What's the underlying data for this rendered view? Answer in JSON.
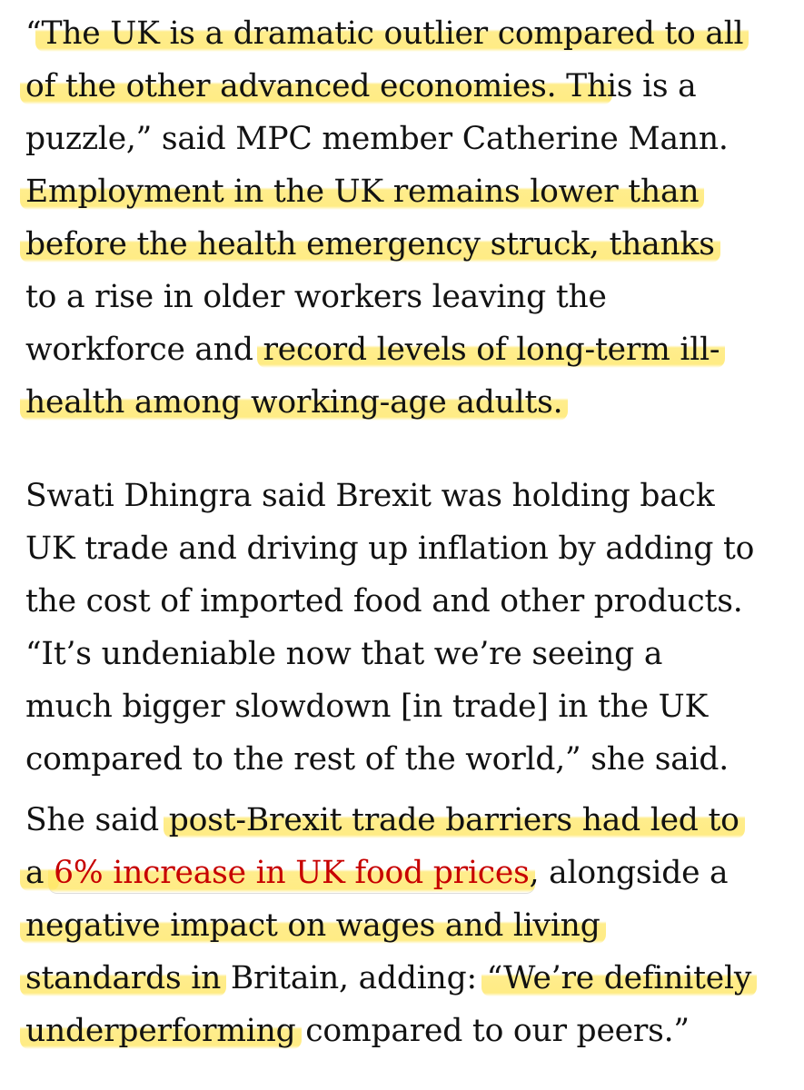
{
  "paragraphs": [
    {
      "lines": [
        [
          {
            "t": "“",
            "hl": false
          },
          {
            "t": "The UK is a dramatic outlier compared to all",
            "hl": true
          }
        ],
        [
          {
            "t": "of the other advanced economies. Th",
            "hl": true
          },
          {
            "t": "is is a",
            "hl": false
          }
        ],
        [
          {
            "t": "puzzle,” said MPC member Catherine Mann.",
            "hl": false
          }
        ],
        [
          {
            "t": "Employment in the UK remains lower than",
            "hl": true
          }
        ],
        [
          {
            "t": "before the health emergency struck, thanks",
            "hl": true
          }
        ],
        [
          {
            "t": "to a rise in older workers leaving the",
            "hl": false
          }
        ],
        [
          {
            "t": "workforce and ",
            "hl": false
          },
          {
            "t": "record levels of long-term ill-",
            "hl": true
          }
        ],
        [
          {
            "t": "health among working-age adults.",
            "hl": true
          }
        ]
      ]
    },
    {
      "lines": [
        [
          {
            "t": "Swati Dhingra said Brexit was holding back",
            "hl": false
          }
        ],
        [
          {
            "t": "UK trade and driving up inflation by adding to",
            "hl": false
          }
        ],
        [
          {
            "t": "the cost of imported food and other products.",
            "hl": false
          }
        ],
        [
          {
            "t": "“It’s undeniable now that we’re seeing a",
            "hl": false
          }
        ],
        [
          {
            "t": "much bigger slowdown [in trade] in the UK",
            "hl": false
          }
        ],
        [
          {
            "t": "compared to the rest of the world,” she said.",
            "hl": false
          }
        ]
      ]
    },
    {
      "lines": [
        [
          {
            "t": "She said ",
            "hl": false
          },
          {
            "t": "post-Brexit trade barriers had led to",
            "hl": true
          }
        ],
        [
          {
            "t": "a ",
            "hl": true
          },
          {
            "t": "6% increase in UK food prices",
            "hl": true,
            "link": true
          },
          {
            "t": ", alongside a",
            "hl": false
          }
        ],
        [
          {
            "t": "negative impact on wages and living",
            "hl": true
          }
        ],
        [
          {
            "t": "standards in",
            "hl": true
          },
          {
            "t": " Britain, adding: ",
            "hl": false
          },
          {
            "t": "“We’re definitely",
            "hl": true
          }
        ],
        [
          {
            "t": "underperforming",
            "hl": true
          },
          {
            "t": " compared to our peers.”",
            "hl": false
          }
        ]
      ]
    }
  ],
  "colors": {
    "text": "#121212",
    "link": "#c70000",
    "highlight": "#ffe766",
    "background": "#ffffff"
  }
}
